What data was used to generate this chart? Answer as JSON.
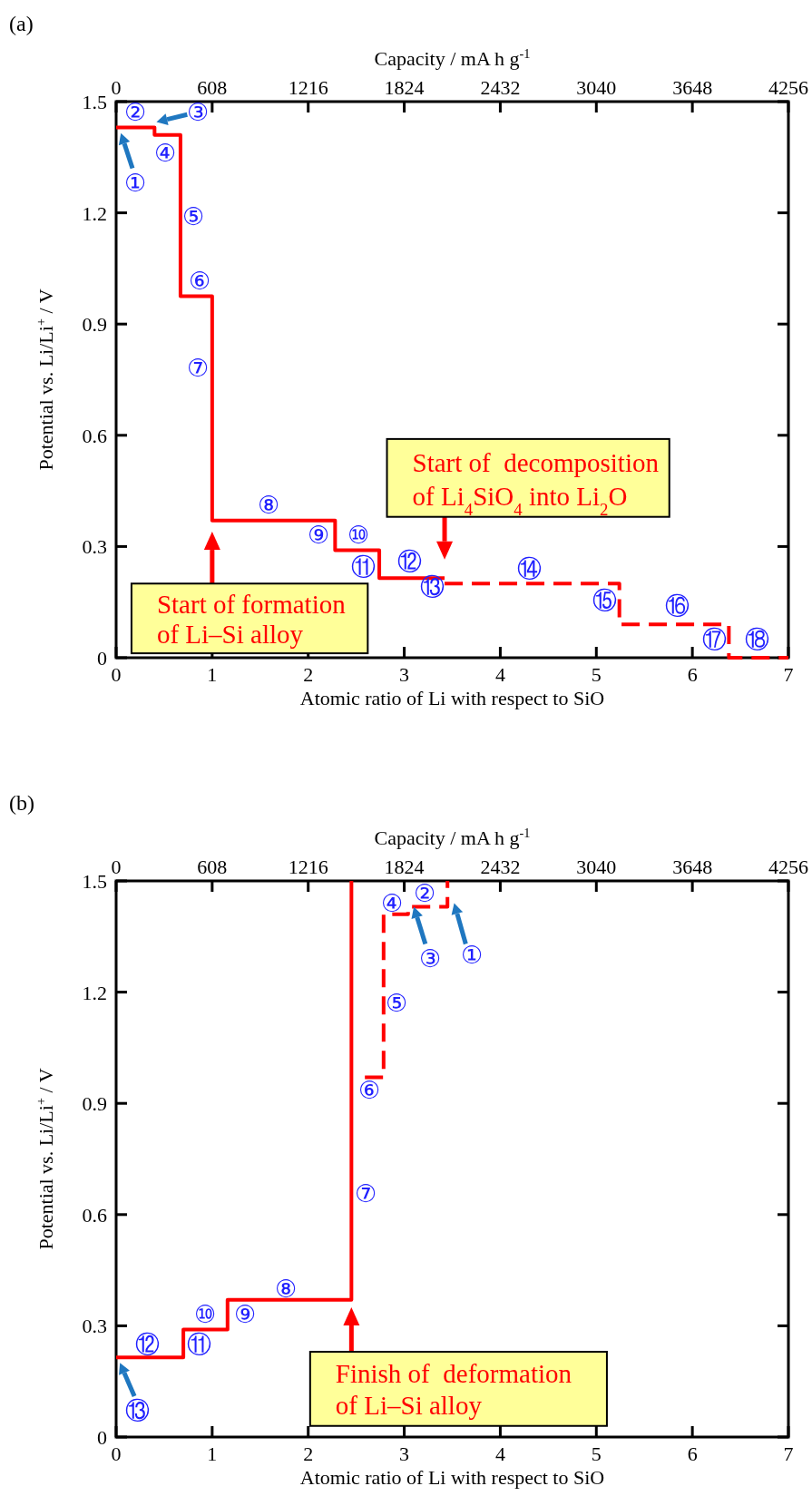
{
  "chart_data": [
    {
      "type": "step",
      "title": "(a)",
      "xlabel": "Atomic ratio of Li with respect to SiO",
      "ylabel": "Potential vs. Li/Li$^{+}$ / V",
      "x2label": "Capacity / mA h g$^{-1}$",
      "xlim": [
        0,
        7
      ],
      "xticks": [
        0,
        1,
        2,
        3,
        4,
        5,
        6,
        7
      ],
      "ylim": [
        0,
        1.5
      ],
      "yticks": [
        0,
        0.3,
        0.6,
        0.9,
        1.2,
        1.5
      ],
      "x2lim": [
        0,
        4256
      ],
      "x2ticks": [
        0,
        608,
        1216,
        1824,
        2432,
        3040,
        3648,
        4256
      ],
      "series": [
        {
          "color": "#ff0000",
          "line_style": "solid",
          "x": [
            0,
            0.4,
            0.67,
            1.0,
            2.28,
            2.74,
            3.42
          ],
          "values": [
            1.43,
            1.41,
            0.975,
            0.37,
            0.29,
            0.215,
            0.215
          ]
        },
        {
          "color": "#ff0000",
          "line_style": "dashed",
          "x": [
            3.42,
            5.24,
            6.38,
            7
          ],
          "values": [
            0.2,
            0.09,
            0,
            0
          ]
        }
      ],
      "annotations": [
        "①",
        "②",
        "③",
        "④",
        "⑤",
        "⑥",
        "⑦",
        "⑧",
        "⑨",
        "⑩",
        "⑪",
        "⑫",
        "⑬",
        "⑭",
        "⑮",
        "⑯",
        "⑰",
        "⑱",
        "Start of formation of Li–Si alloy",
        "Start of  decomposition of Li$_{4}$SiO$_{4}$ into Li$_{2}$O"
      ]
    },
    {
      "type": "step",
      "title": "(b)",
      "xlabel": "Atomic ratio of Li with respect to SiO",
      "ylabel": "Potential vs. Li/Li$^{+}$ / V",
      "x2label": "Capacity / mA h g$^{-1}$",
      "xlim": [
        0,
        7
      ],
      "xticks": [
        0,
        1,
        2,
        3,
        4,
        5,
        6,
        7
      ],
      "ylim": [
        0,
        1.5
      ],
      "yticks": [
        0,
        0.3,
        0.6,
        0.9,
        1.2,
        1.5
      ],
      "x2lim": [
        0,
        4256
      ],
      "x2ticks": [
        0,
        608,
        1216,
        1824,
        2432,
        3040,
        3648,
        4256
      ],
      "series": [
        {
          "color": "#ff0000",
          "line_style": "solid",
          "x": [
            0,
            0.7,
            1.16,
            2.45
          ],
          "values": [
            0.215,
            0.29,
            0.37,
            1.5
          ]
        },
        {
          "color": "#ff0000",
          "line_style": "dashed",
          "x": [
            2.59,
            2.785,
            3.04,
            3.45
          ],
          "values": [
            0.97,
            1.41,
            1.43,
            1.5
          ]
        }
      ],
      "annotations": [
        "①",
        "②",
        "③",
        "④",
        "⑤",
        "⑥",
        "⑦",
        "⑧",
        "⑨",
        "⑩",
        "⑪",
        "⑫",
        "⑬",
        "Finish of  deformation of Li–Si alloy"
      ]
    }
  ]
}
